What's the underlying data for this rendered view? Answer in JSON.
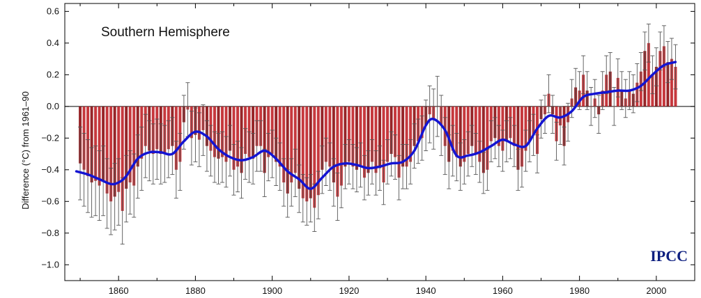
{
  "chart_data": {
    "type": "bar",
    "title": "Southern Hemisphere",
    "ylabel": "Difference (°C) from 1961–90",
    "xlabel": "",
    "xlim": [
      1846,
      2010
    ],
    "ylim": [
      -1.1,
      0.65
    ],
    "xticks": [
      1860,
      1880,
      1900,
      1920,
      1940,
      1960,
      1980,
      2000
    ],
    "yticks": [
      -1.0,
      -0.8,
      -0.6,
      -0.4,
      -0.2,
      0.0,
      0.2,
      0.4,
      0.6
    ],
    "ytick_labels": [
      "−1.0",
      "−0.8",
      "−0.6",
      "−0.4",
      "−0.2",
      "0.0",
      "0.2",
      "0.4",
      "0.6"
    ],
    "grid": false,
    "years": [
      1850,
      1851,
      1852,
      1853,
      1854,
      1855,
      1856,
      1857,
      1858,
      1859,
      1860,
      1861,
      1862,
      1863,
      1864,
      1865,
      1866,
      1867,
      1868,
      1869,
      1870,
      1871,
      1872,
      1873,
      1874,
      1875,
      1876,
      1877,
      1878,
      1879,
      1880,
      1881,
      1882,
      1883,
      1884,
      1885,
      1886,
      1887,
      1888,
      1889,
      1890,
      1891,
      1892,
      1893,
      1894,
      1895,
      1896,
      1897,
      1898,
      1899,
      1900,
      1901,
      1902,
      1903,
      1904,
      1905,
      1906,
      1907,
      1908,
      1909,
      1910,
      1911,
      1912,
      1913,
      1914,
      1915,
      1916,
      1917,
      1918,
      1919,
      1920,
      1921,
      1922,
      1923,
      1924,
      1925,
      1926,
      1927,
      1928,
      1929,
      1930,
      1931,
      1932,
      1933,
      1934,
      1935,
      1936,
      1937,
      1938,
      1939,
      1940,
      1941,
      1942,
      1943,
      1944,
      1945,
      1946,
      1947,
      1948,
      1949,
      1950,
      1951,
      1952,
      1953,
      1954,
      1955,
      1956,
      1957,
      1958,
      1959,
      1960,
      1961,
      1962,
      1963,
      1964,
      1965,
      1966,
      1967,
      1968,
      1969,
      1970,
      1971,
      1972,
      1973,
      1974,
      1975,
      1976,
      1977,
      1978,
      1979,
      1980,
      1981,
      1982,
      1983,
      1984,
      1985,
      1986,
      1987,
      1988,
      1989,
      1990,
      1991,
      1992,
      1993,
      1994,
      1995,
      1996,
      1997,
      1998,
      1999,
      2000,
      2001,
      2002,
      2003,
      2004,
      2005
    ],
    "series": [
      {
        "values": [
          -0.36,
          -0.4,
          -0.44,
          -0.48,
          -0.47,
          -0.5,
          -0.47,
          -0.55,
          -0.6,
          -0.57,
          -0.54,
          -0.66,
          -0.52,
          -0.48,
          -0.5,
          -0.38,
          -0.33,
          -0.25,
          -0.28,
          -0.3,
          -0.27,
          -0.3,
          -0.3,
          -0.27,
          -0.25,
          -0.4,
          -0.35,
          -0.1,
          -0.02,
          -0.2,
          -0.18,
          -0.21,
          -0.15,
          -0.25,
          -0.28,
          -0.32,
          -0.33,
          -0.32,
          -0.35,
          -0.28,
          -0.4,
          -0.38,
          -0.42,
          -0.3,
          -0.32,
          -0.33,
          -0.25,
          -0.25,
          -0.42,
          -0.32,
          -0.3,
          -0.35,
          -0.38,
          -0.48,
          -0.55,
          -0.48,
          -0.42,
          -0.52,
          -0.58,
          -0.6,
          -0.58,
          -0.64,
          -0.56,
          -0.4,
          -0.35,
          -0.38,
          -0.48,
          -0.57,
          -0.5,
          -0.38,
          -0.35,
          -0.38,
          -0.4,
          -0.37,
          -0.45,
          -0.42,
          -0.35,
          -0.42,
          -0.39,
          -0.48,
          -0.35,
          -0.3,
          -0.32,
          -0.45,
          -0.38,
          -0.38,
          -0.35,
          -0.25,
          -0.22,
          -0.2,
          -0.12,
          -0.05,
          -0.08,
          0.0,
          -0.12,
          -0.25,
          -0.35,
          -0.28,
          -0.32,
          -0.38,
          -0.35,
          -0.3,
          -0.25,
          -0.3,
          -0.35,
          -0.42,
          -0.4,
          -0.22,
          -0.2,
          -0.25,
          -0.28,
          -0.22,
          -0.2,
          -0.25,
          -0.4,
          -0.38,
          -0.28,
          -0.22,
          -0.18,
          -0.3,
          -0.08,
          -0.05,
          0.08,
          -0.05,
          -0.22,
          -0.12,
          -0.25,
          -0.1,
          0.05,
          0.12,
          0.1,
          0.2,
          0.1,
          0.0,
          0.05,
          -0.05,
          0.1,
          0.2,
          0.22,
          0.0,
          0.18,
          0.1,
          0.05,
          0.1,
          0.08,
          0.15,
          0.22,
          0.35,
          0.4,
          0.2,
          0.25,
          0.35,
          0.38,
          0.28,
          0.3,
          0.25
        ]
      }
    ],
    "error_halfwidth": [
      0.23,
      0.23,
      0.23,
      0.22,
      0.22,
      0.22,
      0.22,
      0.22,
      0.21,
      0.21,
      0.21,
      0.21,
      0.21,
      0.2,
      0.2,
      0.2,
      0.2,
      0.2,
      0.19,
      0.19,
      0.19,
      0.19,
      0.18,
      0.18,
      0.18,
      0.18,
      0.18,
      0.17,
      0.17,
      0.17,
      0.17,
      0.17,
      0.16,
      0.16,
      0.16,
      0.16,
      0.16,
      0.16,
      0.16,
      0.16,
      0.16,
      0.16,
      0.16,
      0.16,
      0.16,
      0.16,
      0.16,
      0.16,
      0.15,
      0.15,
      0.15,
      0.15,
      0.15,
      0.15,
      0.15,
      0.15,
      0.15,
      0.15,
      0.15,
      0.15,
      0.15,
      0.15,
      0.15,
      0.15,
      0.15,
      0.15,
      0.15,
      0.15,
      0.14,
      0.14,
      0.14,
      0.14,
      0.14,
      0.14,
      0.14,
      0.14,
      0.14,
      0.14,
      0.14,
      0.14,
      0.14,
      0.14,
      0.14,
      0.14,
      0.14,
      0.14,
      0.14,
      0.14,
      0.14,
      0.14,
      0.16,
      0.18,
      0.19,
      0.19,
      0.19,
      0.18,
      0.17,
      0.16,
      0.15,
      0.15,
      0.14,
      0.14,
      0.13,
      0.13,
      0.13,
      0.13,
      0.13,
      0.13,
      0.13,
      0.13,
      0.13,
      0.13,
      0.13,
      0.13,
      0.13,
      0.13,
      0.13,
      0.13,
      0.13,
      0.12,
      0.12,
      0.12,
      0.12,
      0.12,
      0.12,
      0.12,
      0.12,
      0.12,
      0.12,
      0.12,
      0.12,
      0.12,
      0.12,
      0.12,
      0.12,
      0.12,
      0.12,
      0.12,
      0.12,
      0.12,
      0.12,
      0.12,
      0.12,
      0.12,
      0.12,
      0.12,
      0.12,
      0.12,
      0.12,
      0.12,
      0.12,
      0.12,
      0.13,
      0.13,
      0.13,
      0.14
    ],
    "smoothed_curve": {
      "x": [
        1849,
        1852,
        1855,
        1858,
        1860,
        1862,
        1865,
        1868,
        1871,
        1874,
        1877,
        1880,
        1883,
        1886,
        1889,
        1892,
        1895,
        1898,
        1901,
        1904,
        1907,
        1910,
        1913,
        1916,
        1919,
        1922,
        1925,
        1928,
        1931,
        1934,
        1937,
        1940,
        1942,
        1945,
        1948,
        1951,
        1954,
        1957,
        1960,
        1963,
        1966,
        1969,
        1972,
        1975,
        1978,
        1981,
        1984,
        1987,
        1990,
        1993,
        1996,
        1999,
        2002,
        2005
      ],
      "y": [
        -0.41,
        -0.43,
        -0.46,
        -0.49,
        -0.48,
        -0.44,
        -0.33,
        -0.29,
        -0.29,
        -0.3,
        -0.22,
        -0.16,
        -0.19,
        -0.27,
        -0.32,
        -0.34,
        -0.32,
        -0.28,
        -0.33,
        -0.41,
        -0.46,
        -0.52,
        -0.45,
        -0.38,
        -0.36,
        -0.37,
        -0.39,
        -0.38,
        -0.36,
        -0.35,
        -0.28,
        -0.12,
        -0.08,
        -0.15,
        -0.31,
        -0.31,
        -0.29,
        -0.25,
        -0.21,
        -0.24,
        -0.25,
        -0.14,
        -0.06,
        -0.07,
        -0.03,
        0.06,
        0.08,
        0.09,
        0.1,
        0.1,
        0.13,
        0.2,
        0.26,
        0.28
      ],
      "color": "#1414d2"
    },
    "colors": {
      "bar_above": "#c1272d",
      "bar_below": "#c1272d",
      "error_bar": "#555555",
      "curve": "#1414d2"
    }
  },
  "brand": {
    "text": "IPCC",
    "color": "#0d1f80"
  }
}
